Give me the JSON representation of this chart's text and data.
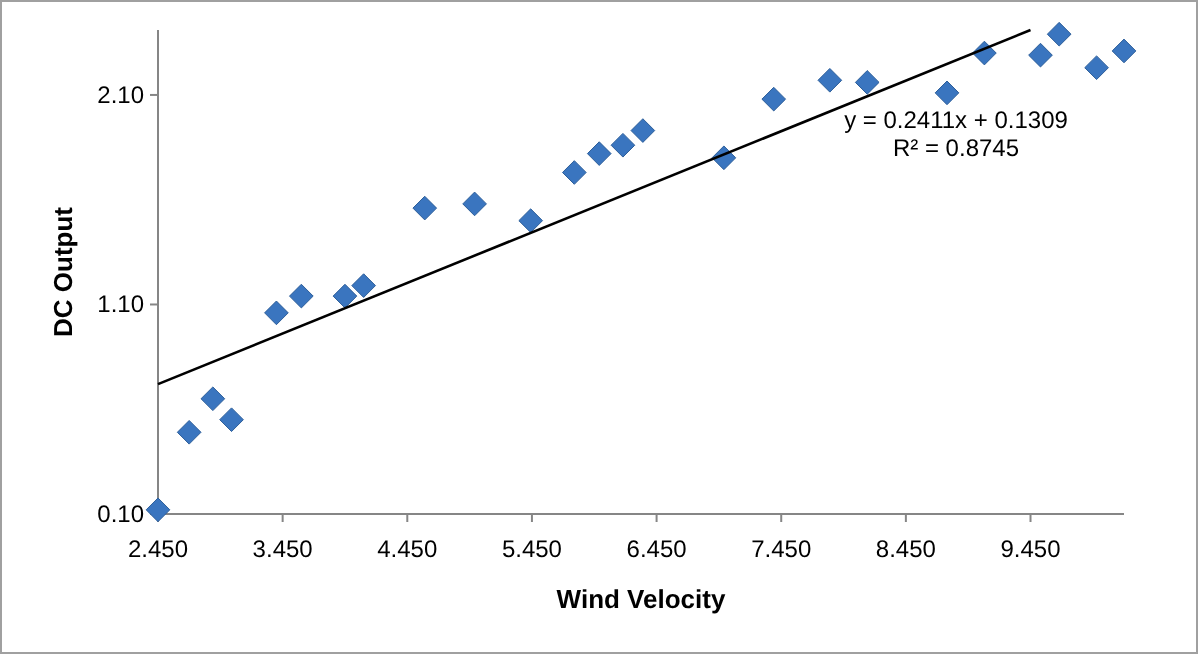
{
  "chart_data": {
    "type": "scatter",
    "xlabel": "Wind Velocity",
    "ylabel": "DC Output",
    "marker": "diamond",
    "grid": false,
    "xlim": [
      2.45,
      10.2
    ],
    "ylim": [
      0.1,
      2.41
    ],
    "xticks": [
      {
        "value": 2.45,
        "label": "2.450"
      },
      {
        "value": 3.45,
        "label": "3.450"
      },
      {
        "value": 4.45,
        "label": "4.450"
      },
      {
        "value": 5.45,
        "label": "5.450"
      },
      {
        "value": 6.45,
        "label": "6.450"
      },
      {
        "value": 7.45,
        "label": "7.450"
      },
      {
        "value": 8.45,
        "label": "8.450"
      },
      {
        "value": 9.45,
        "label": "9.450"
      }
    ],
    "yticks": [
      {
        "value": 0.1,
        "label": "0.10"
      },
      {
        "value": 1.1,
        "label": "1.10"
      },
      {
        "value": 2.1,
        "label": "2.10"
      }
    ],
    "series": [
      {
        "color": "#3a75bf",
        "x": [
          2.45,
          2.7,
          2.89,
          3.04,
          3.4,
          3.6,
          3.95,
          4.1,
          4.59,
          4.99,
          5.44,
          5.79,
          5.99,
          6.18,
          6.34,
          6.99,
          7.39,
          7.84,
          8.14,
          8.78,
          9.08,
          9.53,
          9.68,
          9.98,
          10.2
        ],
        "values": [
          0.12,
          0.49,
          0.65,
          0.55,
          1.06,
          1.14,
          1.14,
          1.19,
          1.56,
          1.58,
          1.5,
          1.73,
          1.82,
          1.86,
          1.93,
          1.8,
          2.08,
          2.17,
          2.16,
          2.11,
          2.3,
          2.29,
          2.39,
          2.23,
          2.31
        ]
      },
      {
        "type": "line",
        "color": "#000000",
        "marker": "none",
        "x": [
          2.45,
          9.45
        ],
        "values": [
          0.72,
          2.41
        ]
      }
    ],
    "annotations": [
      "y = 0.2411x + 0.1309",
      "R² = 0.8745"
    ]
  }
}
